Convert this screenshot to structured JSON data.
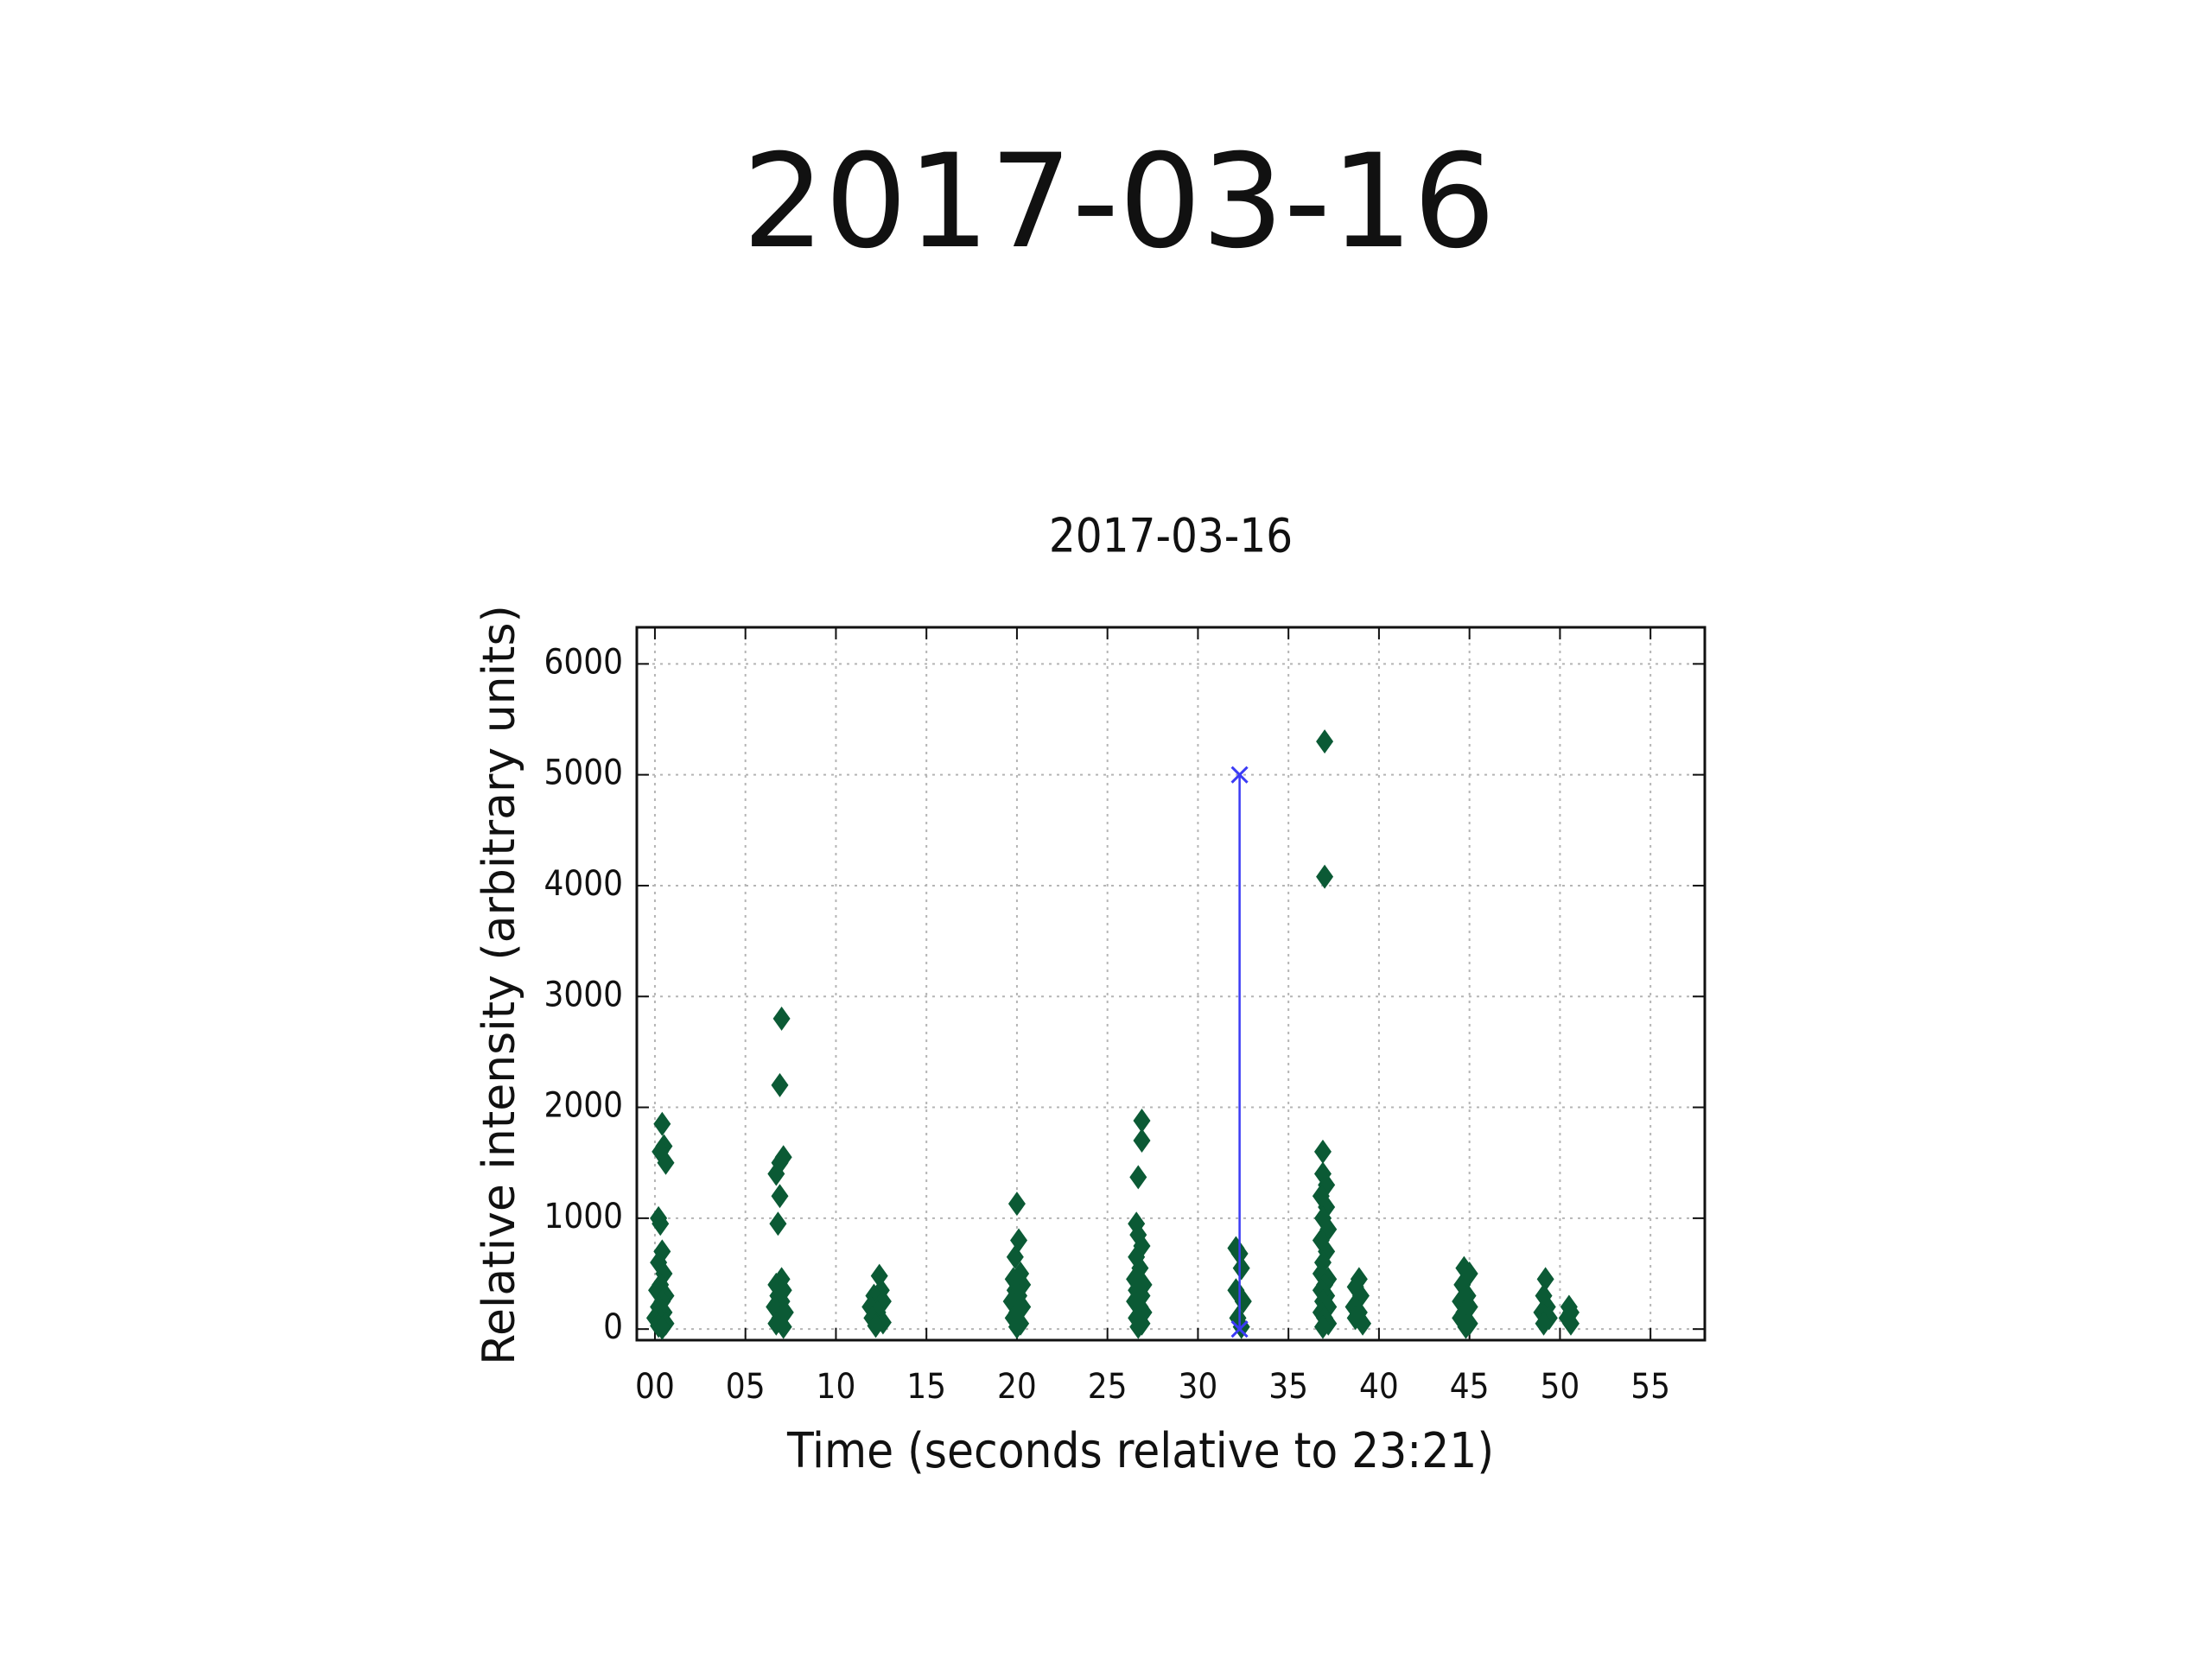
{
  "slide_title": "2017-03-16",
  "chart_data": {
    "type": "scatter",
    "title": "2017-03-16",
    "xlabel": "Time (seconds relative to 23:21)",
    "ylabel": "Relative intensity (arbitrary units)",
    "xlim": [
      -1,
      58
    ],
    "ylim": [
      -100,
      6330
    ],
    "xticks": [
      {
        "value": 0,
        "label": "00"
      },
      {
        "value": 5,
        "label": "05"
      },
      10,
      15,
      20,
      25,
      30,
      35,
      40,
      45,
      50,
      55
    ],
    "yticks": [
      0,
      1000,
      2000,
      3000,
      4000,
      5000,
      6000
    ],
    "grid": true,
    "series": [
      {
        "color": "#0b5a35",
        "marker": "diamond",
        "x": [
          0.4,
          0.5,
          0.3,
          0.6,
          0.2,
          0.3,
          0.4,
          0.2,
          0.5,
          0.3,
          0.1,
          0.6,
          0.4,
          0.2,
          0.5,
          0.0,
          0.3,
          0.6,
          0.2,
          0.4,
          7.0,
          6.9,
          7.1,
          6.9,
          6.7,
          6.9,
          6.8,
          7.0,
          6.7,
          7.1,
          6.8,
          7.0,
          6.6,
          7.2,
          6.9,
          6.7,
          7.1,
          12.4,
          12.5,
          12.1,
          12.6,
          11.9,
          12.3,
          12.0,
          12.6,
          12.2,
          20.0,
          20.1,
          19.9,
          20.2,
          19.8,
          20.3,
          19.9,
          20.1,
          19.7,
          20.3,
          20.0,
          19.8,
          20.2,
          20.0,
          26.9,
          26.9,
          26.7,
          26.6,
          26.7,
          26.9,
          26.6,
          26.8,
          26.5,
          27.0,
          26.6,
          26.9,
          26.5,
          26.8,
          27.0,
          26.6,
          26.9,
          26.7,
          32.1,
          32.3,
          32.4,
          32.1,
          32.5,
          32.2,
          32.4,
          37.0,
          37.0,
          36.9,
          36.9,
          37.1,
          36.8,
          37.1,
          36.9,
          37.2,
          36.8,
          37.1,
          36.9,
          36.8,
          37.2,
          37.0,
          36.8,
          37.1,
          36.9,
          37.2,
          36.8,
          37.0,
          37.2,
          36.9,
          38.9,
          38.7,
          39.0,
          38.6,
          38.9,
          38.7,
          39.1,
          44.7,
          45.0,
          44.6,
          44.9,
          44.5,
          45.0,
          44.7,
          44.5,
          45.0,
          44.8,
          49.2,
          49.1,
          49.3,
          49.0,
          49.4,
          49.1,
          50.5,
          50.6,
          50.4,
          50.6
        ],
        "values": [
          1850,
          1650,
          1600,
          1500,
          1000,
          950,
          700,
          600,
          500,
          400,
          350,
          300,
          250,
          200,
          150,
          100,
          80,
          50,
          30,
          10,
          2800,
          2200,
          1550,
          1500,
          1400,
          1200,
          950,
          450,
          400,
          350,
          300,
          250,
          200,
          150,
          100,
          50,
          20,
          480,
          350,
          300,
          250,
          200,
          150,
          100,
          60,
          30,
          1130,
          800,
          650,
          500,
          450,
          400,
          350,
          300,
          250,
          200,
          150,
          100,
          50,
          20,
          1880,
          1700,
          1370,
          950,
          850,
          750,
          650,
          550,
          450,
          400,
          350,
          300,
          250,
          200,
          150,
          100,
          50,
          20,
          730,
          680,
          550,
          350,
          250,
          100,
          20,
          5300,
          4080,
          1600,
          1400,
          1300,
          1200,
          1100,
          1000,
          900,
          800,
          700,
          600,
          500,
          450,
          400,
          350,
          300,
          250,
          200,
          150,
          100,
          50,
          20,
          450,
          380,
          300,
          200,
          150,
          100,
          50,
          550,
          500,
          400,
          300,
          250,
          200,
          150,
          100,
          50,
          20,
          450,
          300,
          200,
          150,
          100,
          50,
          200,
          150,
          100,
          50
        ]
      },
      {
        "color": "#3b3bf5",
        "marker": "x",
        "line": true,
        "x": [
          32.3,
          32.3
        ],
        "values": [
          0,
          5000
        ]
      }
    ]
  }
}
